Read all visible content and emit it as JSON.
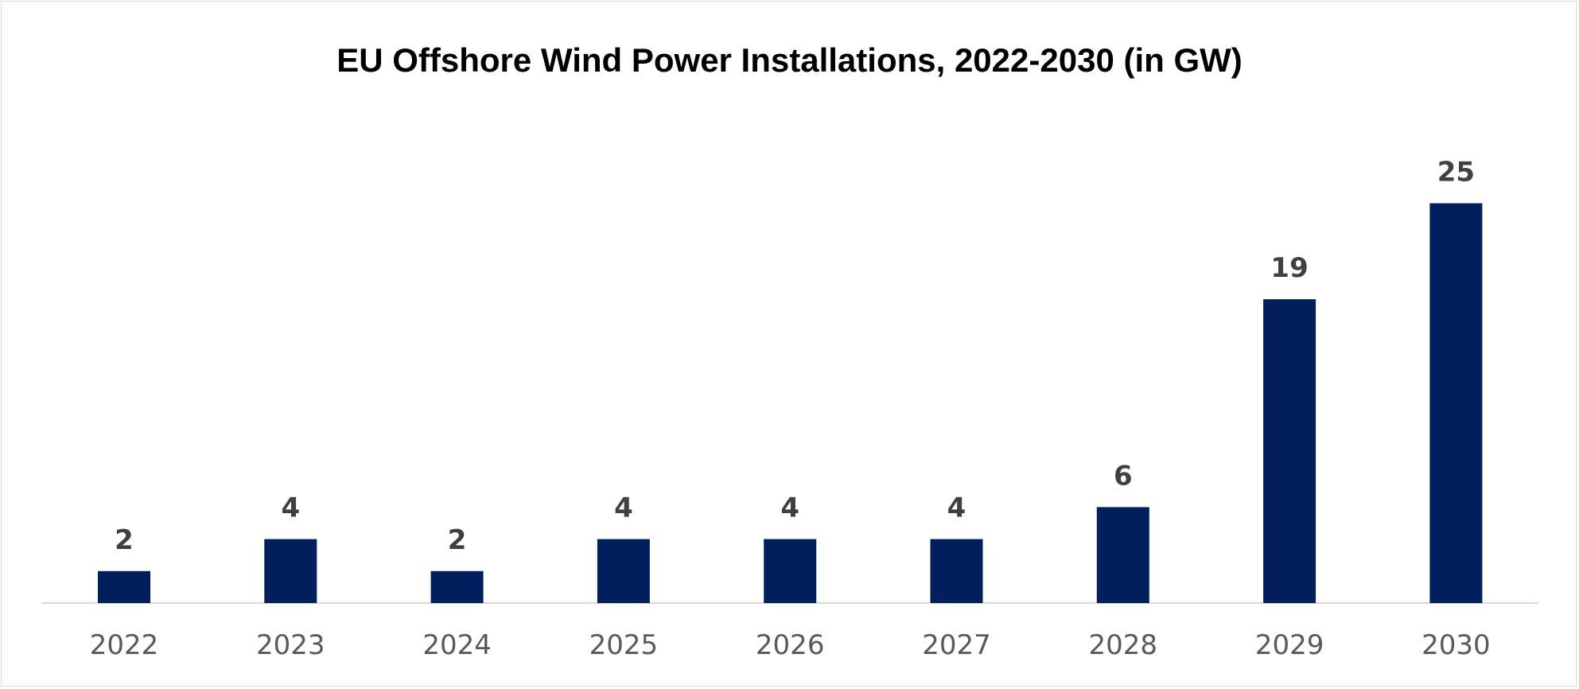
{
  "chart_data": {
    "type": "bar",
    "title": "EU Offshore Wind Power Installations, 2022-2030 (in GW)",
    "categories": [
      "2022",
      "2023",
      "2024",
      "2025",
      "2026",
      "2027",
      "2028",
      "2029",
      "2030"
    ],
    "values": [
      2,
      4,
      2,
      4,
      4,
      4,
      6,
      19,
      25
    ],
    "data_labels": [
      "2",
      "4",
      "2",
      "4",
      "4",
      "4",
      "6",
      "19",
      "25"
    ],
    "ylim": [
      0,
      30
    ],
    "grid": false,
    "legend": "none",
    "bar_color": "#001f5c"
  }
}
